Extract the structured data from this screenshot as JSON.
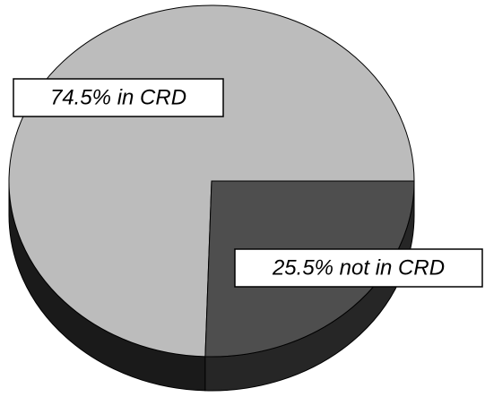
{
  "chart_data": {
    "type": "pie",
    "values": [
      74.5,
      25.5
    ],
    "value_labels": [
      "74.5% in CRD",
      "25.5% not in CRD"
    ],
    "colors": [
      "#bcbcbc",
      "#4e4e4e"
    ],
    "side_colors": [
      "#1a1a1a",
      "#262626"
    ],
    "three_d": true
  }
}
